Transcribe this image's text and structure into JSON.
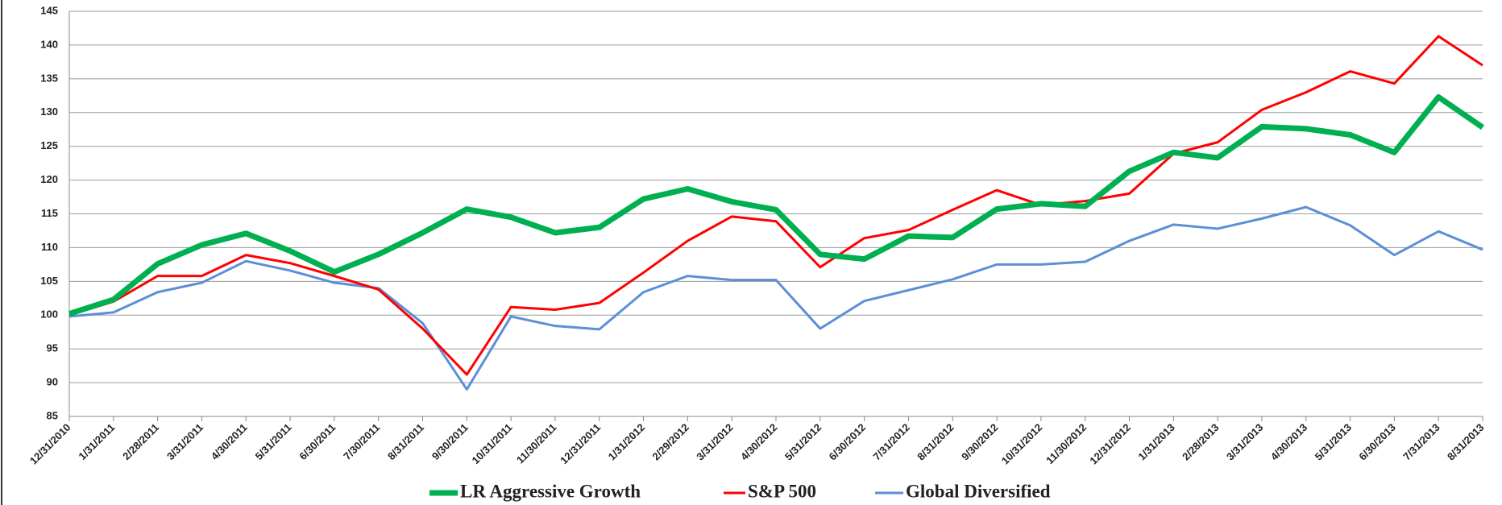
{
  "chart_data": {
    "type": "line",
    "categories": [
      "12/31/2010",
      "1/31/2011",
      "2/28/2011",
      "3/31/2011",
      "4/30/2011",
      "5/31/2011",
      "6/30/2011",
      "7/30/2011",
      "8/31/2011",
      "9/30/2011",
      "10/31/2011",
      "11/30/2011",
      "12/31/2011",
      "1/31/2012",
      "2/29/2012",
      "3/31/2012",
      "4/30/2012",
      "5/31/2012",
      "6/30/2012",
      "7/31/2012",
      "8/31/2012",
      "9/30/2012",
      "10/31/2012",
      "11/30/2012",
      "12/31/2012",
      "1/31/2013",
      "2/28/2013",
      "3/31/2013",
      "4/30/2013",
      "5/31/2013",
      "6/30/2013",
      "7/31/2013",
      "8/31/2013"
    ],
    "series": [
      {
        "name": "LR Aggressive Growth",
        "color": "#00b050",
        "values": [
          100.2,
          102.3,
          107.6,
          110.4,
          112.1,
          109.5,
          106.4,
          109,
          112.2,
          115.7,
          114.5,
          112.2,
          113,
          117.2,
          118.7,
          116.8,
          115.6,
          109,
          108.3,
          111.7,
          111.5,
          115.7,
          116.5,
          116.1,
          121.3,
          124.1,
          123.3,
          127.9,
          127.6,
          126.7,
          124.1,
          132.3,
          127.8
        ]
      },
      {
        "name": "S&P 500",
        "color": "#ff0000",
        "values": [
          100,
          102,
          105.8,
          105.8,
          108.9,
          107.7,
          105.8,
          103.8,
          98,
          91.2,
          101.2,
          100.8,
          101.8,
          106.3,
          111,
          114.6,
          113.9,
          107.1,
          111.4,
          112.6,
          115.6,
          118.5,
          116.3,
          116.9,
          118,
          123.9,
          125.6,
          130.4,
          133,
          136.1,
          134.3,
          141.3,
          137
        ]
      },
      {
        "name": "Global Diversified",
        "color": "#5b8fd6",
        "values": [
          99.8,
          100.4,
          103.4,
          104.8,
          108,
          106.6,
          104.8,
          104,
          98.8,
          89,
          99.8,
          98.4,
          97.9,
          103.4,
          105.8,
          105.2,
          105.2,
          98,
          102.1,
          103.7,
          105.3,
          107.5,
          107.5,
          107.9,
          111,
          113.4,
          112.8,
          114.3,
          116,
          113.3,
          108.9,
          112.4,
          109.7
        ]
      }
    ],
    "ylim": [
      85,
      145
    ],
    "yticks": [
      85,
      90,
      95,
      100,
      105,
      110,
      115,
      120,
      125,
      130,
      135,
      140,
      145
    ],
    "grid": true
  }
}
